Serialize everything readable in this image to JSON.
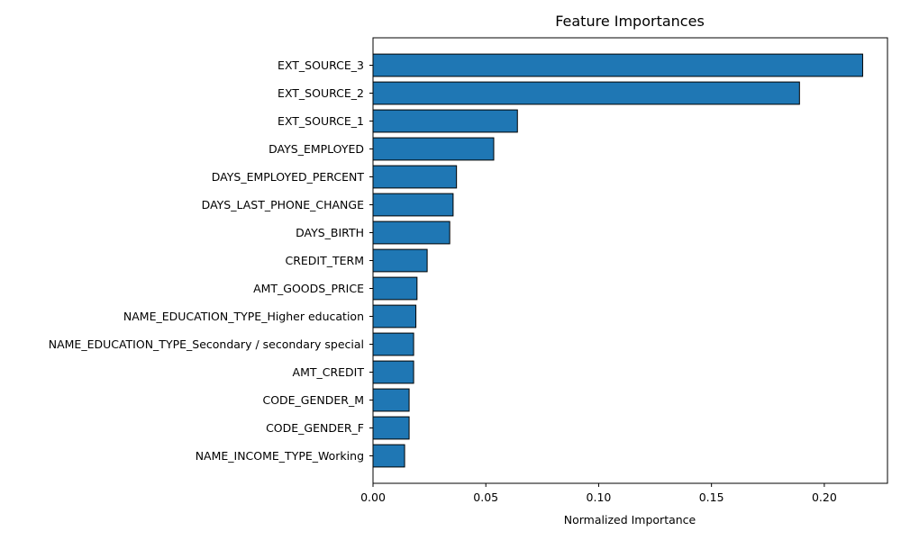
{
  "chart_data": {
    "type": "bar",
    "orientation": "horizontal",
    "title": "Feature Importances",
    "xlabel": "Normalized Importance",
    "ylabel": "",
    "xlim": [
      0,
      0.228
    ],
    "xticks": [
      0.0,
      0.05,
      0.1,
      0.15,
      0.2
    ],
    "xtick_labels": [
      "0.00",
      "0.05",
      "0.10",
      "0.15",
      "0.20"
    ],
    "grid": false,
    "bar_color": "#1f77b4",
    "edge_color": "#000000",
    "categories": [
      "EXT_SOURCE_3",
      "EXT_SOURCE_2",
      "EXT_SOURCE_1",
      "DAYS_EMPLOYED",
      "DAYS_EMPLOYED_PERCENT",
      "DAYS_LAST_PHONE_CHANGE",
      "DAYS_BIRTH",
      "CREDIT_TERM",
      "AMT_GOODS_PRICE",
      "NAME_EDUCATION_TYPE_Higher education",
      "NAME_EDUCATION_TYPE_Secondary / secondary special",
      "AMT_CREDIT",
      "CODE_GENDER_M",
      "CODE_GENDER_F",
      "NAME_INCOME_TYPE_Working"
    ],
    "values": [
      0.217,
      0.189,
      0.064,
      0.0535,
      0.037,
      0.0355,
      0.034,
      0.024,
      0.0195,
      0.019,
      0.018,
      0.018,
      0.016,
      0.016,
      0.014
    ]
  }
}
